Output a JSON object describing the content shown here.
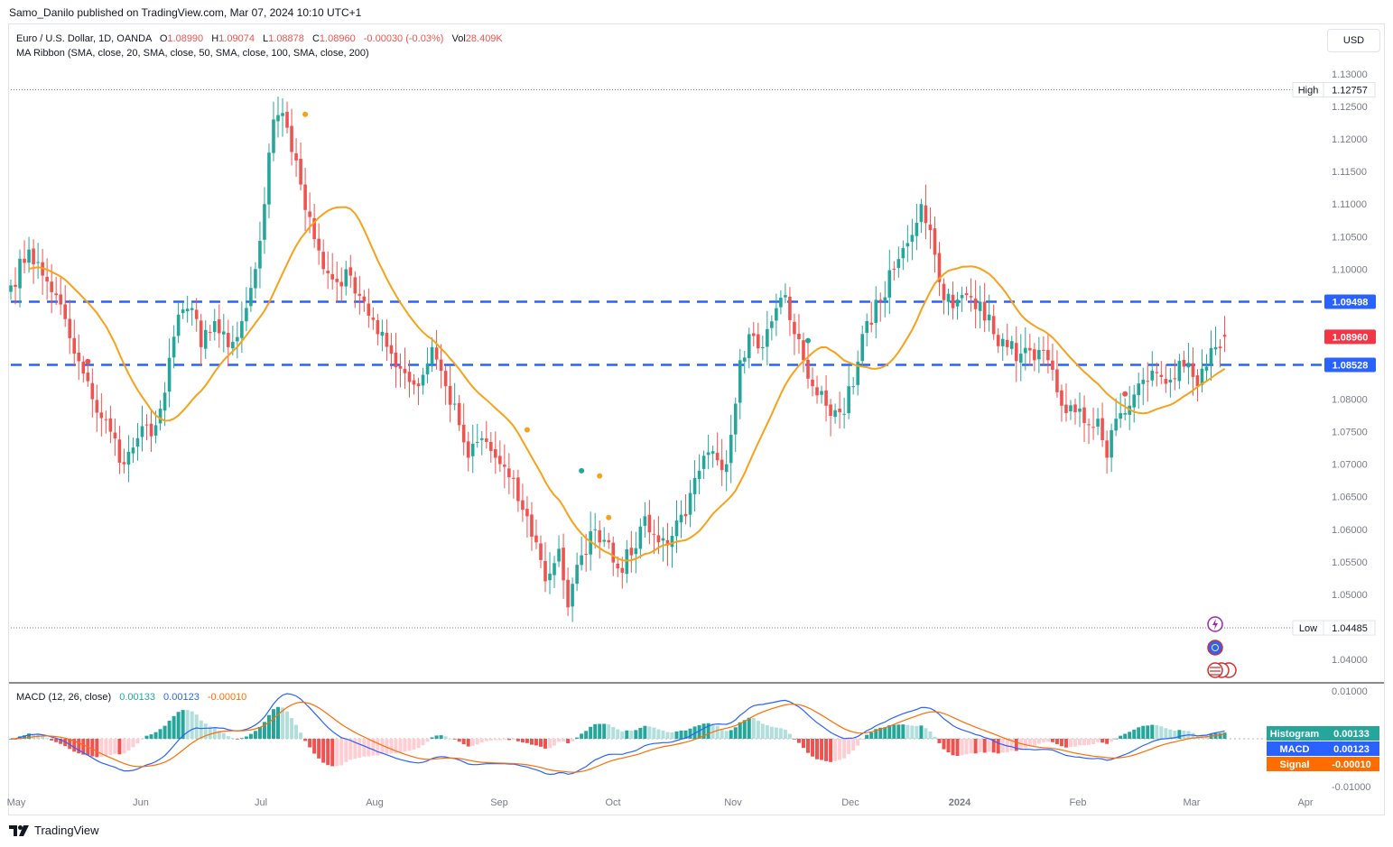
{
  "publisher": "Samo_Danilo published on TradingView.com, Mar 07, 2024 10:10 UTC+1",
  "footer_brand": "TradingView",
  "currency_button": "USD",
  "legend": {
    "symbol": "Euro / U.S. Dollar, 1D, OANDA",
    "o_label": "O",
    "o": "1.08990",
    "h_label": "H",
    "h": "1.09074",
    "l_label": "L",
    "l": "1.08878",
    "c_label": "C",
    "c": "1.08960",
    "change": "-0.00030 (-0.03%)",
    "vol_label": "Vol",
    "vol": "28.409K",
    "indicator": "MA Ribbon (SMA, close, 20, SMA, close, 50, SMA, close, 100, SMA, close, 200)"
  },
  "macd_legend": {
    "name": "MACD (12, 26, close)",
    "hist": "0.00133",
    "macd": "0.00123",
    "signal": "-0.00010"
  },
  "price_labels": {
    "high_label": "High",
    "high_value": "1.12757",
    "low_label": "Low",
    "low_value": "1.04485",
    "level_upper": "1.09498",
    "level_lower": "1.08528",
    "last": "1.08960"
  },
  "macd_labels": {
    "hist_label": "Histogram",
    "hist_value": "0.00133",
    "macd_label": "MACD",
    "macd_value": "0.00123",
    "signal_label": "Signal",
    "signal_value": "-0.00010"
  },
  "colors": {
    "up": "#26a69a",
    "down": "#ef5350",
    "ma": "#f7a21b",
    "level": "#2962ff",
    "macd_line": "#2962ff",
    "signal_line": "#ff6d00",
    "hist_up": "#26a69a",
    "hist_up_light": "#b2dfdb",
    "hist_down": "#ef5350",
    "hist_down_light": "#ffcdd2",
    "last_price": "#f23645"
  },
  "chart_data": {
    "type": "candlestick",
    "symbol": "EUR/USD",
    "y_axis_ticks": [
      1.13,
      1.125,
      1.12,
      1.115,
      1.11,
      1.105,
      1.1,
      1.095,
      1.09,
      1.085,
      1.08,
      1.075,
      1.07,
      1.065,
      1.06,
      1.055,
      1.05,
      1.045,
      1.04
    ],
    "y_axis_tick_labels": [
      "1.13000",
      "1.12500",
      "1.12000",
      "1.11500",
      "1.11000",
      "1.10500",
      "1.10000",
      "1.09500",
      "1.09000",
      "1.08500",
      "1.08000",
      "1.07500",
      "1.07000",
      "1.06500",
      "1.06000",
      "1.05500",
      "1.05000",
      "1.04500",
      "1.04000"
    ],
    "macd_axis_ticks": [
      0.01,
      0.0,
      -0.01
    ],
    "macd_axis_tick_labels": [
      "0.01000",
      "",
      "-0.01000"
    ],
    "x_axis_labels": [
      "May",
      "Jun",
      "Jul",
      "Aug",
      "Sep",
      "Oct",
      "Nov",
      "Dec",
      "2024",
      "Feb",
      "Mar",
      "Apr"
    ],
    "horizontal_levels": [
      1.09498,
      1.08528
    ],
    "high": 1.12757,
    "low": 1.04485,
    "anchors": [
      [
        0,
        1.0975
      ],
      [
        4,
        1.103
      ],
      [
        7,
        1.099
      ],
      [
        10,
        1.096
      ],
      [
        14,
        1.087
      ],
      [
        18,
        1.08
      ],
      [
        22,
        1.075
      ],
      [
        25,
        1.07
      ],
      [
        28,
        1.074
      ],
      [
        32,
        1.076
      ],
      [
        34,
        1.081
      ],
      [
        37,
        1.093
      ],
      [
        40,
        1.094
      ],
      [
        42,
        1.088
      ],
      [
        45,
        1.092
      ],
      [
        48,
        1.088
      ],
      [
        51,
        1.092
      ],
      [
        54,
        1.1
      ],
      [
        56,
        1.11
      ],
      [
        58,
        1.123
      ],
      [
        60,
        1.124
      ],
      [
        62,
        1.118
      ],
      [
        64,
        1.113
      ],
      [
        66,
        1.108
      ],
      [
        69,
        1.1
      ],
      [
        72,
        1.098
      ],
      [
        75,
        1.099
      ],
      [
        78,
        1.095
      ],
      [
        81,
        1.09
      ],
      [
        84,
        1.087
      ],
      [
        87,
        1.084
      ],
      [
        90,
        1.082
      ],
      [
        93,
        1.088
      ],
      [
        96,
        1.082
      ],
      [
        99,
        1.076
      ],
      [
        101,
        1.071
      ],
      [
        104,
        1.074
      ],
      [
        107,
        1.071
      ],
      [
        110,
        1.068
      ],
      [
        113,
        1.063
      ],
      [
        116,
        1.058
      ],
      [
        118,
        1.052
      ],
      [
        121,
        1.057
      ],
      [
        123,
        1.048
      ],
      [
        126,
        1.056
      ],
      [
        129,
        1.06
      ],
      [
        132,
        1.058
      ],
      [
        134,
        1.054
      ],
      [
        137,
        1.056
      ],
      [
        140,
        1.062
      ],
      [
        143,
        1.058
      ],
      [
        146,
        1.059
      ],
      [
        149,
        1.062
      ],
      [
        152,
        1.069
      ],
      [
        155,
        1.072
      ],
      [
        158,
        1.07
      ],
      [
        161,
        1.086
      ],
      [
        163,
        1.09
      ],
      [
        166,
        1.088
      ],
      [
        169,
        1.094
      ],
      [
        171,
        1.096
      ],
      [
        173,
        1.09
      ],
      [
        175,
        1.086
      ],
      [
        177,
        1.082
      ],
      [
        180,
        1.079
      ],
      [
        183,
        1.078
      ],
      [
        186,
        1.082
      ],
      [
        189,
        1.092
      ],
      [
        192,
        1.095
      ],
      [
        195,
        1.1
      ],
      [
        198,
        1.104
      ],
      [
        201,
        1.11
      ],
      [
        203,
        1.106
      ],
      [
        205,
        1.098
      ],
      [
        208,
        1.094
      ],
      [
        211,
        1.096
      ],
      [
        214,
        1.095
      ],
      [
        217,
        1.09
      ],
      [
        220,
        1.088
      ],
      [
        223,
        1.087
      ],
      [
        226,
        1.086
      ],
      [
        229,
        1.086
      ],
      [
        232,
        1.079
      ],
      [
        235,
        1.078
      ],
      [
        238,
        1.076
      ],
      [
        240,
        1.077
      ],
      [
        242,
        1.071
      ],
      [
        244,
        1.077
      ],
      [
        247,
        1.079
      ],
      [
        250,
        1.083
      ],
      [
        253,
        1.084
      ],
      [
        256,
        1.083
      ],
      [
        259,
        1.085
      ],
      [
        262,
        1.082
      ],
      [
        264,
        1.085
      ],
      [
        266,
        1.088
      ],
      [
        268,
        1.0896
      ]
    ],
    "ma_period": 20,
    "macd": {
      "fast": 12,
      "slow": 26,
      "signal": 9,
      "histogram_last": 0.00133,
      "macd_last": 0.00123,
      "signal_last": -0.0001
    }
  }
}
